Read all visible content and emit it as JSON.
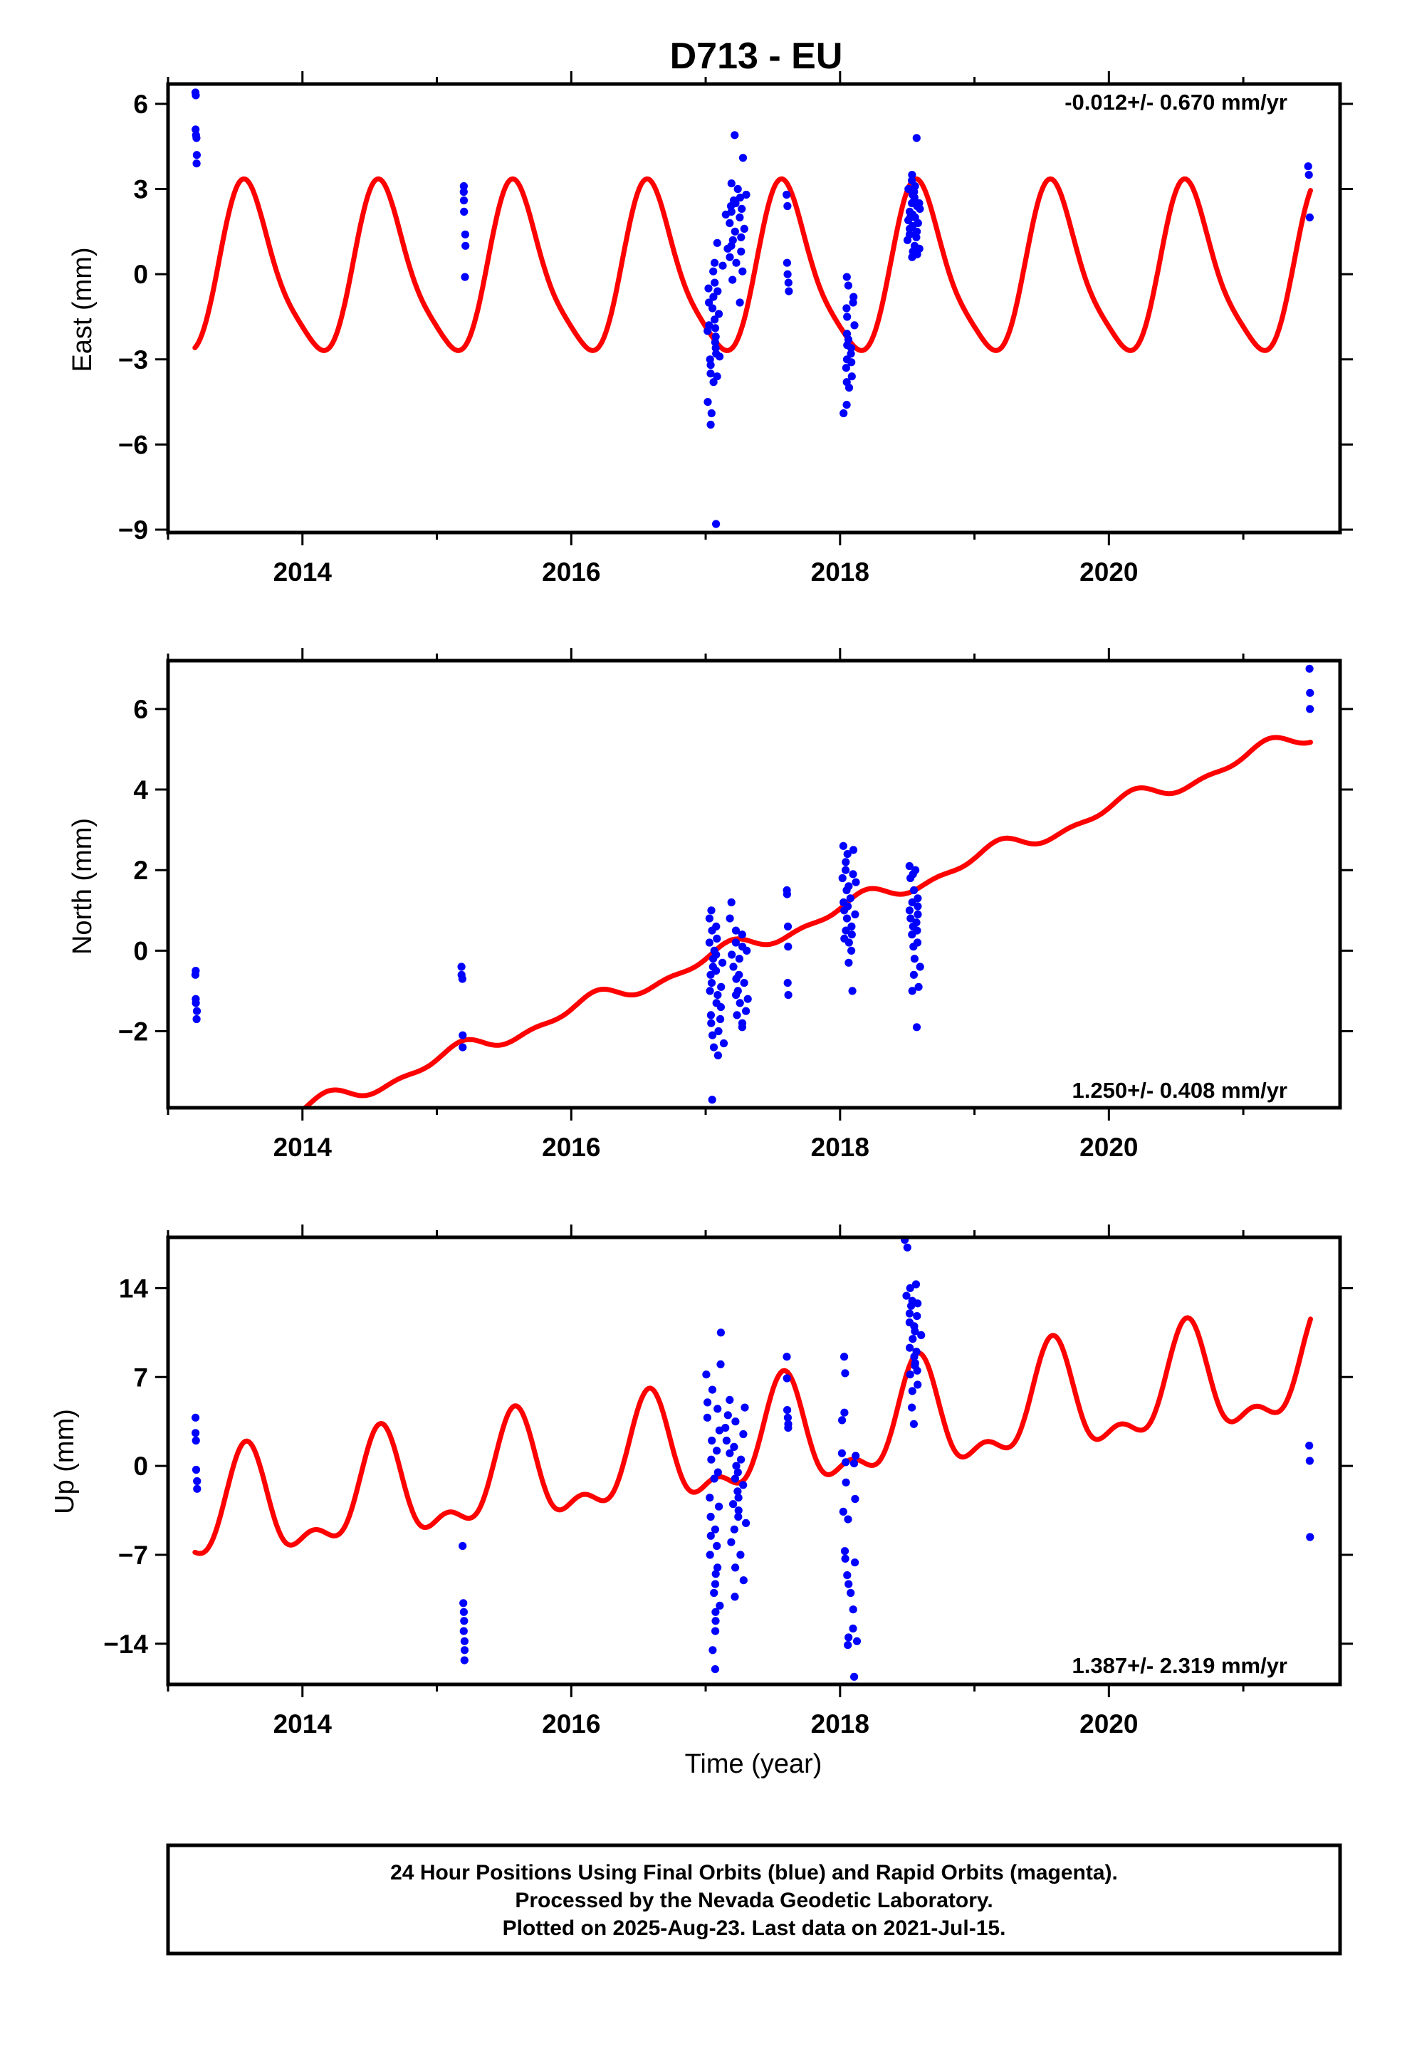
{
  "station_title": "D713 - EU",
  "time_axis_label": "Time (year)",
  "colors": {
    "model": "#ff0000",
    "final_orbits": "#0000ff",
    "frame": "#000000"
  },
  "chart_data": [
    {
      "type": "scatter",
      "component": "east",
      "ylabel": "East (mm)",
      "xlim": [
        2013.0,
        2021.72
      ],
      "ylim": [
        -9.1,
        6.7
      ],
      "xticks": [
        2014,
        2016,
        2018,
        2020
      ],
      "yticks": [
        6,
        3,
        0,
        -3,
        -6,
        -9
      ],
      "ytick_labels": [
        "6",
        "3",
        "0",
        "−3",
        "−6",
        "−9"
      ],
      "rate_text": "-0.012+/- 0.670 mm/yr",
      "rate_position": "top-right",
      "model": {
        "offset": 0.0,
        "trend": 0.0,
        "a1": -1.6,
        "b1": -2.4,
        "a2": 0.2,
        "b2": 0.55,
        "x_start": 2013.2,
        "x_end": 2021.5
      },
      "clusters": [
        {
          "x0": 2013.2,
          "x1": 2013.22,
          "y": [
            6.4,
            6.3,
            5.1,
            4.9,
            4.8,
            4.2,
            3.9
          ]
        },
        {
          "x0": 2015.19,
          "x1": 2015.22,
          "y": [
            3.1,
            2.9,
            2.6,
            2.2,
            1.4,
            1.0,
            -0.1
          ]
        },
        {
          "x0": 2017.0,
          "x1": 2017.12,
          "y": [
            -1.0,
            -2.0,
            -3.2,
            -4.5,
            -5.3,
            -3.5,
            -1.8,
            -0.5,
            0.4,
            -2.4,
            -3.0,
            -1.2,
            -2.8,
            -4.9,
            -0.8,
            -1.6,
            -2.6,
            -3.8,
            0.1,
            -1.4,
            -2.2,
            -0.3,
            -3.6,
            -8.8,
            -1.9,
            -2.9,
            1.1,
            -0.6
          ]
        },
        {
          "x0": 2017.12,
          "x1": 2017.33,
          "y": [
            0.3,
            1.2,
            2.1,
            2.6,
            1.8,
            0.9,
            -0.2,
            2.4,
            2.5,
            1.5,
            0.6,
            3.2,
            4.9,
            1.0,
            2.2,
            0.4,
            -1.0,
            2.7,
            1.6,
            3.0,
            2.0,
            0.8,
            1.3,
            2.8,
            0.1,
            4.1,
            2.3
          ]
        },
        {
          "x0": 2017.6,
          "x1": 2017.62,
          "y": [
            2.8,
            2.4,
            0.4,
            0.0,
            -0.3,
            -0.6
          ]
        },
        {
          "x0": 2018.0,
          "x1": 2018.13,
          "y": [
            -0.1,
            -1.5,
            -2.5,
            -3.0,
            -3.8,
            -4.6,
            -4.9,
            -3.3,
            -2.1,
            -1.2,
            -0.4,
            -2.8,
            -3.6,
            -4.0,
            -1.8,
            -2.3,
            -3.1,
            -0.8,
            -1.0,
            -2.6
          ]
        },
        {
          "x0": 2018.48,
          "x1": 2018.62,
          "y": [
            3.5,
            3.0,
            2.5,
            2.0,
            1.6,
            1.2,
            0.8,
            2.9,
            2.2,
            1.9,
            1.4,
            2.6,
            2.7,
            1.0,
            4.8,
            0.6,
            2.4,
            1.7,
            3.3,
            2.1,
            2.8,
            1.5,
            0.9,
            2.3,
            3.1,
            1.8,
            2.0,
            0.7,
            2.5,
            1.3
          ]
        },
        {
          "x0": 2021.48,
          "x1": 2021.5,
          "y": [
            3.8,
            3.5,
            2.0
          ]
        }
      ]
    },
    {
      "type": "scatter",
      "component": "north",
      "ylabel": "North (mm)",
      "xlim": [
        2013.0,
        2021.72
      ],
      "ylim": [
        -3.9,
        7.2
      ],
      "xticks": [
        2014,
        2016,
        2018,
        2020
      ],
      "yticks": [
        6,
        4,
        2,
        0,
        -2
      ],
      "ytick_labels": [
        "6",
        "4",
        "2",
        "0",
        "−2"
      ],
      "rate_text": "1.250+/- 0.408 mm/yr",
      "rate_position": "bottom-right",
      "model": {
        "offset": 0.0,
        "trend": 1.25,
        "a1": 0.15,
        "b1": 0.12,
        "a2": 0.05,
        "b2": -0.08,
        "x_start": 2013.2,
        "x_end": 2021.5,
        "x_ref": 2017.2
      },
      "clusters": [
        {
          "x0": 2013.2,
          "x1": 2013.22,
          "y": [
            -0.5,
            -0.6,
            -1.2,
            -1.3,
            -1.5,
            -1.7
          ]
        },
        {
          "x0": 2015.18,
          "x1": 2015.2,
          "y": [
            -0.4,
            -0.6,
            -0.7,
            -2.1,
            -2.4
          ]
        },
        {
          "x0": 2017.0,
          "x1": 2017.14,
          "y": [
            1.0,
            0.8,
            0.5,
            0.2,
            0.0,
            -0.2,
            -0.4,
            -0.6,
            -0.8,
            -1.0,
            -1.3,
            -1.6,
            -1.8,
            -2.1,
            -2.4,
            -3.7,
            0.3,
            -0.1,
            -0.5,
            -1.1,
            -1.4,
            -2.0,
            -2.6,
            0.6,
            -0.3,
            -0.9,
            -1.7,
            -2.3
          ]
        },
        {
          "x0": 2017.14,
          "x1": 2017.33,
          "y": [
            1.2,
            0.8,
            0.5,
            0.2,
            -0.1,
            -0.4,
            -0.7,
            -1.0,
            -1.3,
            -1.6,
            -1.9,
            -0.2,
            0.4,
            -0.6,
            -1.1,
            -1.5,
            0.1,
            -0.8,
            -1.8,
            0.0,
            -1.2
          ]
        },
        {
          "x0": 2017.6,
          "x1": 2017.62,
          "y": [
            1.5,
            1.4,
            0.6,
            0.1,
            -0.8,
            -1.1
          ]
        },
        {
          "x0": 2018.0,
          "x1": 2018.13,
          "y": [
            2.6,
            2.4,
            2.0,
            1.8,
            1.5,
            1.2,
            1.0,
            0.8,
            0.5,
            0.3,
            0.0,
            -0.3,
            2.2,
            1.6,
            1.1,
            0.6,
            0.2,
            1.9,
            1.3,
            0.9,
            2.5,
            -1.0,
            1.7,
            0.4
          ]
        },
        {
          "x0": 2018.5,
          "x1": 2018.62,
          "y": [
            2.1,
            1.8,
            1.5,
            1.2,
            1.0,
            0.8,
            0.6,
            0.4,
            0.1,
            -0.2,
            -0.6,
            -1.0,
            1.9,
            1.1,
            0.7,
            0.2,
            -0.4,
            2.0,
            0.9,
            0.5,
            -0.9,
            -1.9,
            1.3
          ]
        },
        {
          "x0": 2021.49,
          "x1": 2021.5,
          "y": [
            7.0,
            6.4,
            6.0
          ]
        }
      ]
    },
    {
      "type": "scatter",
      "component": "up",
      "ylabel": "Up (mm)",
      "xlim": [
        2013.0,
        2021.72
      ],
      "ylim": [
        -17.2,
        18.0
      ],
      "xticks": [
        2014,
        2016,
        2018,
        2020
      ],
      "yticks": [
        14,
        7,
        0,
        -7,
        -14
      ],
      "ytick_labels": [
        "14",
        "7",
        "0",
        "−7",
        "−14"
      ],
      "rate_text": "1.387+/- 2.319 mm/yr",
      "rate_position": "bottom-right",
      "model": {
        "offset": 1.3,
        "trend": 1.387,
        "a1": -1.8,
        "b1": -3.4,
        "a2": 1.6,
        "b2": 0.9,
        "x_start": 2013.2,
        "x_end": 2021.5,
        "x_ref": 2017.2
      },
      "clusters": [
        {
          "x0": 2013.2,
          "x1": 2013.22,
          "y": [
            3.8,
            2.6,
            2.0,
            -0.3,
            -1.2,
            -1.8
          ]
        },
        {
          "x0": 2015.19,
          "x1": 2015.21,
          "y": [
            -6.3,
            -10.8,
            -11.5,
            -12.2,
            -13.0,
            -13.8,
            -14.5,
            -15.3
          ]
        },
        {
          "x0": 2017.0,
          "x1": 2017.13,
          "y": [
            7.2,
            5.0,
            3.8,
            2.0,
            0.5,
            -1.0,
            -2.5,
            -4.0,
            -5.5,
            -7.0,
            -8.5,
            -10.0,
            -11.5,
            -13.0,
            -14.5,
            -16.0,
            6.0,
            1.2,
            -3.2,
            -6.3,
            -9.3,
            -12.2,
            4.5,
            -0.5,
            -5.0,
            -8.0,
            10.5,
            8.0,
            2.8,
            -11.0
          ]
        },
        {
          "x0": 2017.13,
          "x1": 2017.33,
          "y": [
            5.2,
            4.0,
            3.0,
            2.0,
            1.0,
            0.0,
            -1.0,
            -2.0,
            -3.0,
            -4.0,
            -5.0,
            -6.0,
            -7.0,
            -8.0,
            -10.3,
            3.5,
            1.5,
            -0.5,
            -2.5,
            -4.5,
            4.6,
            2.5,
            -1.5,
            -3.5,
            -9.0,
            0.5
          ]
        },
        {
          "x0": 2017.6,
          "x1": 2017.62,
          "y": [
            8.6,
            6.9,
            4.4,
            3.8,
            3.3,
            3.0
          ]
        },
        {
          "x0": 2018.0,
          "x1": 2018.13,
          "y": [
            8.6,
            7.3,
            4.2,
            3.6,
            1.0,
            0.3,
            -1.3,
            -3.6,
            -4.2,
            -6.7,
            -7.3,
            -8.6,
            -9.3,
            -10.0,
            -11.3,
            -12.8,
            -13.5,
            -14.1,
            -16.6,
            0.8,
            -2.6,
            -7.6,
            0.2,
            -13.8
          ]
        },
        {
          "x0": 2018.48,
          "x1": 2018.62,
          "y": [
            17.8,
            17.2,
            14.0,
            13.4,
            12.6,
            12.0,
            11.3,
            10.6,
            10.0,
            9.3,
            8.6,
            7.9,
            7.2,
            5.9,
            4.6,
            3.3,
            13.0,
            11.0,
            9.0,
            7.5,
            12.8,
            10.3,
            8.1,
            6.4,
            14.3,
            11.8
          ]
        },
        {
          "x0": 2021.49,
          "x1": 2021.5,
          "y": [
            1.6,
            0.4,
            -5.6
          ]
        }
      ]
    }
  ],
  "footer": {
    "lines": [
      "24 Hour Positions Using Final Orbits (blue) and Rapid Orbits (magenta).",
      "Processed by the Nevada Geodetic Laboratory.",
      "Plotted on 2025-Aug-23. Last data on 2021-Jul-15."
    ]
  }
}
